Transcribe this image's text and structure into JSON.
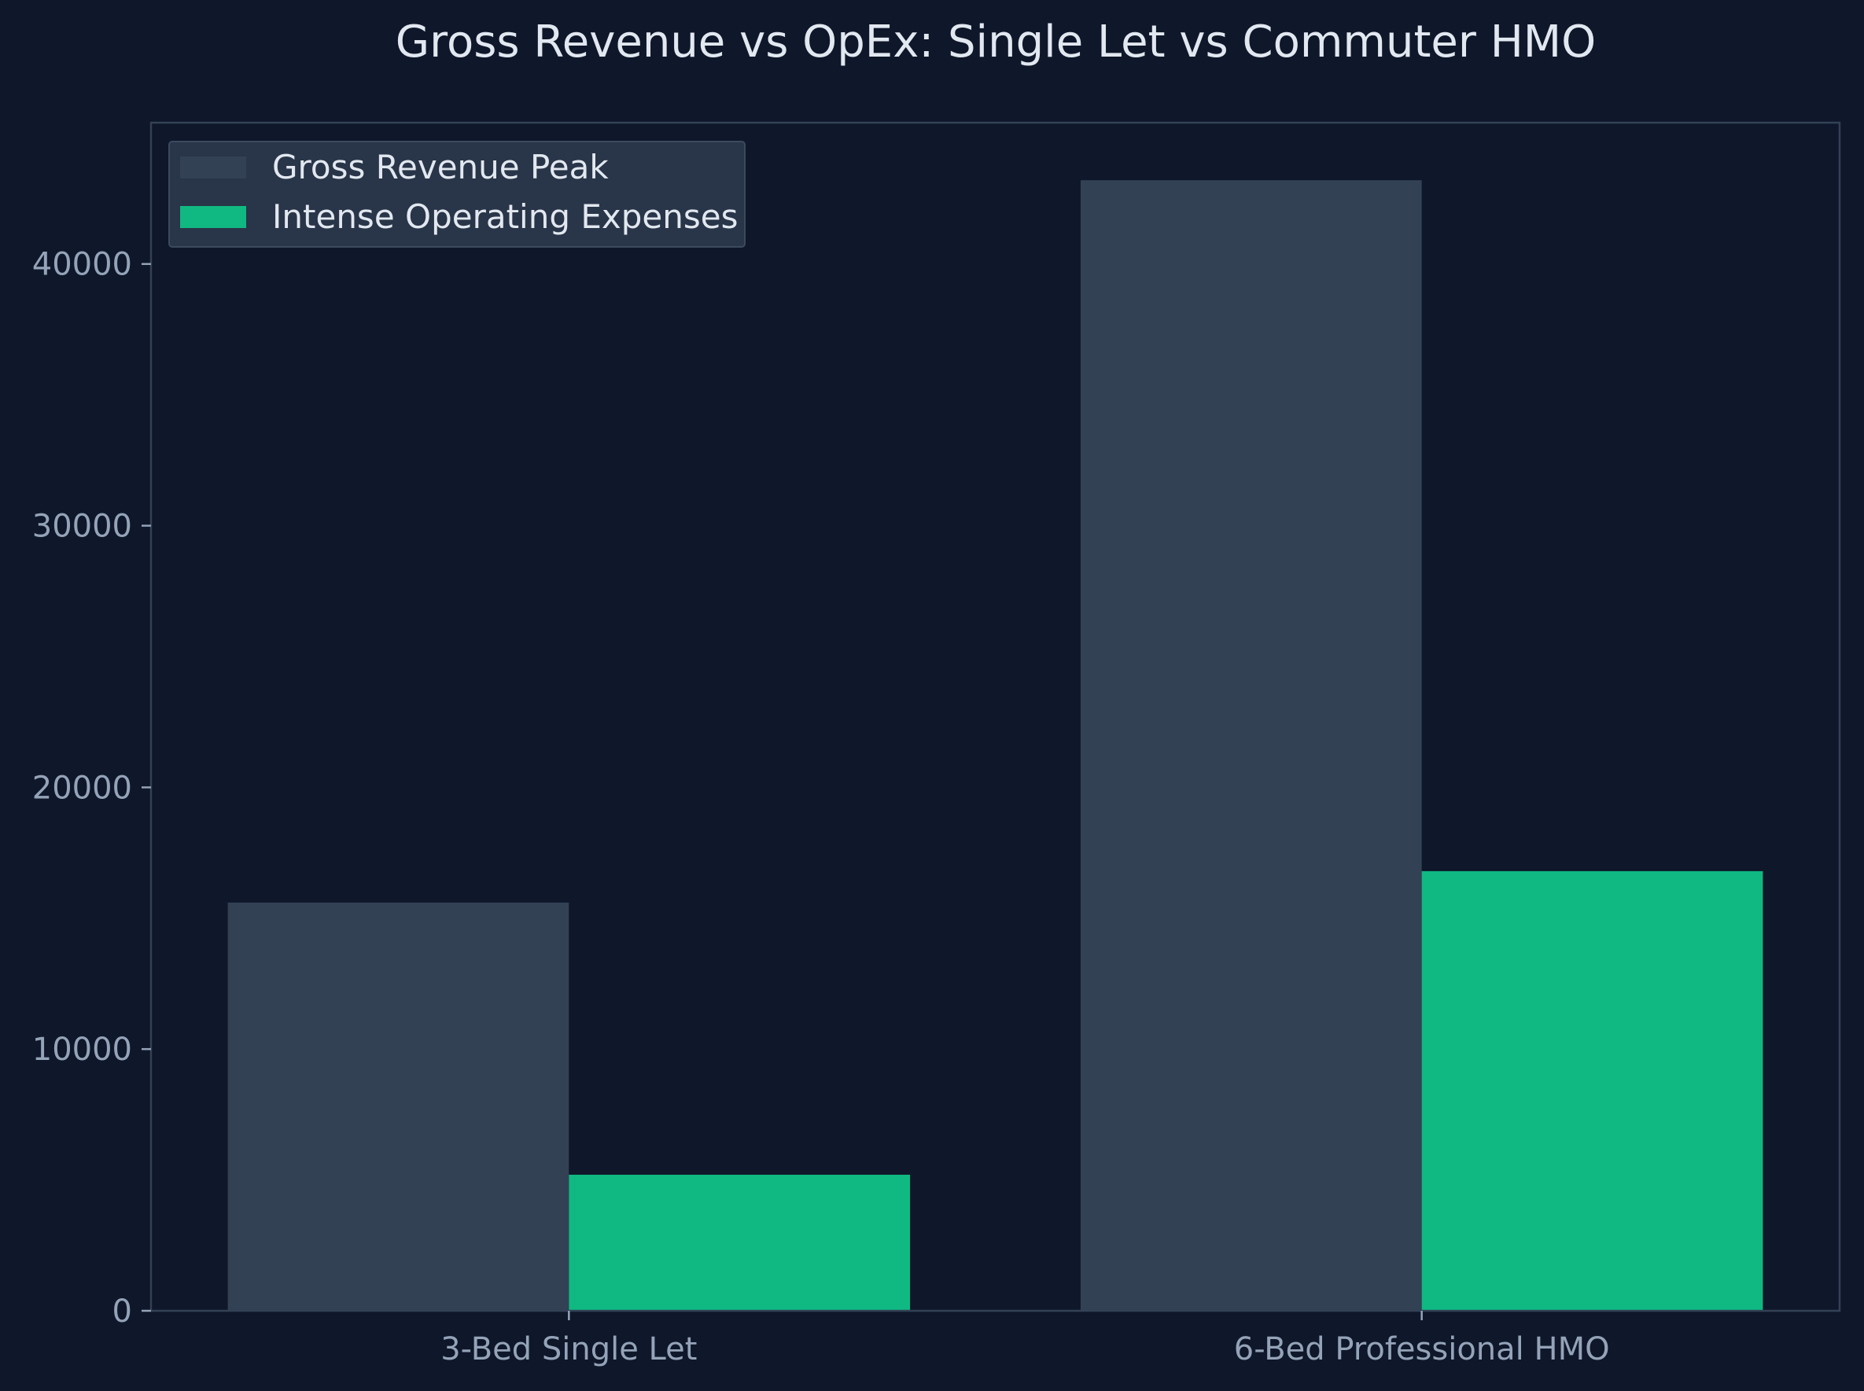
{
  "chart_data": {
    "type": "bar",
    "title": "Gross Revenue vs OpEx: Single Let vs Commuter HMO",
    "xlabel": "",
    "ylabel": "",
    "categories": [
      "3-Bed Single Let",
      "6-Bed Professional HMO"
    ],
    "series": [
      {
        "name": "Gross Revenue Peak",
        "values": [
          15600,
          43200
        ],
        "color": "#334155"
      },
      {
        "name": "Intense Operating Expenses",
        "values": [
          5200,
          16800
        ],
        "color": "#10b981"
      }
    ],
    "ylim": [
      0,
      45400
    ],
    "yticks": [
      0,
      10000,
      20000,
      30000,
      40000
    ],
    "grid": false,
    "legend": "top-left"
  },
  "colors": {
    "background": "#0f172a",
    "axes_border": "#334155",
    "tick_text": "#94a3b8",
    "title_text": "#e2e8f0",
    "legend_bg": "#293548"
  }
}
